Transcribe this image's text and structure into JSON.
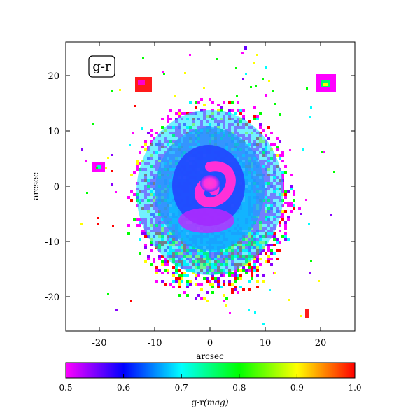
{
  "panel_label": "g-r",
  "x_axis": {
    "label": "arcsec",
    "ticks": [
      "-20",
      "-10",
      "0",
      "10",
      "20"
    ],
    "tick_values": [
      -20,
      -10,
      0,
      10,
      20
    ],
    "range": [
      -26,
      26
    ]
  },
  "y_axis": {
    "label": "arcsec",
    "ticks": [
      "20",
      "10",
      "0",
      "-10",
      "-20"
    ],
    "tick_values": [
      20,
      10,
      0,
      -10,
      -20
    ],
    "range": [
      -26,
      26
    ]
  },
  "colorbar": {
    "label_text": "g-r",
    "label_unit": "(mag)",
    "ticks": [
      "0.5",
      "0.6",
      "0.7",
      "0.8",
      "0.9",
      "1.0"
    ],
    "tick_values": [
      0.5,
      0.6,
      0.7,
      0.8,
      0.9,
      1.0
    ],
    "range": [
      0.5,
      1.0
    ],
    "gradient_colors": [
      "#ff00ff",
      "#0000ff",
      "#00ffff",
      "#00ff00",
      "#ffff00",
      "#ff0000"
    ]
  },
  "image": {
    "description_colors": {
      "core": "#ff33cc",
      "inner_disk": "#3344ff",
      "mid_ring": "#00ffff",
      "outer_noise": [
        "#ff00ff",
        "#00ff00",
        "#ffff00",
        "#ff0000",
        "#00ffff",
        "#8800ff"
      ]
    }
  }
}
